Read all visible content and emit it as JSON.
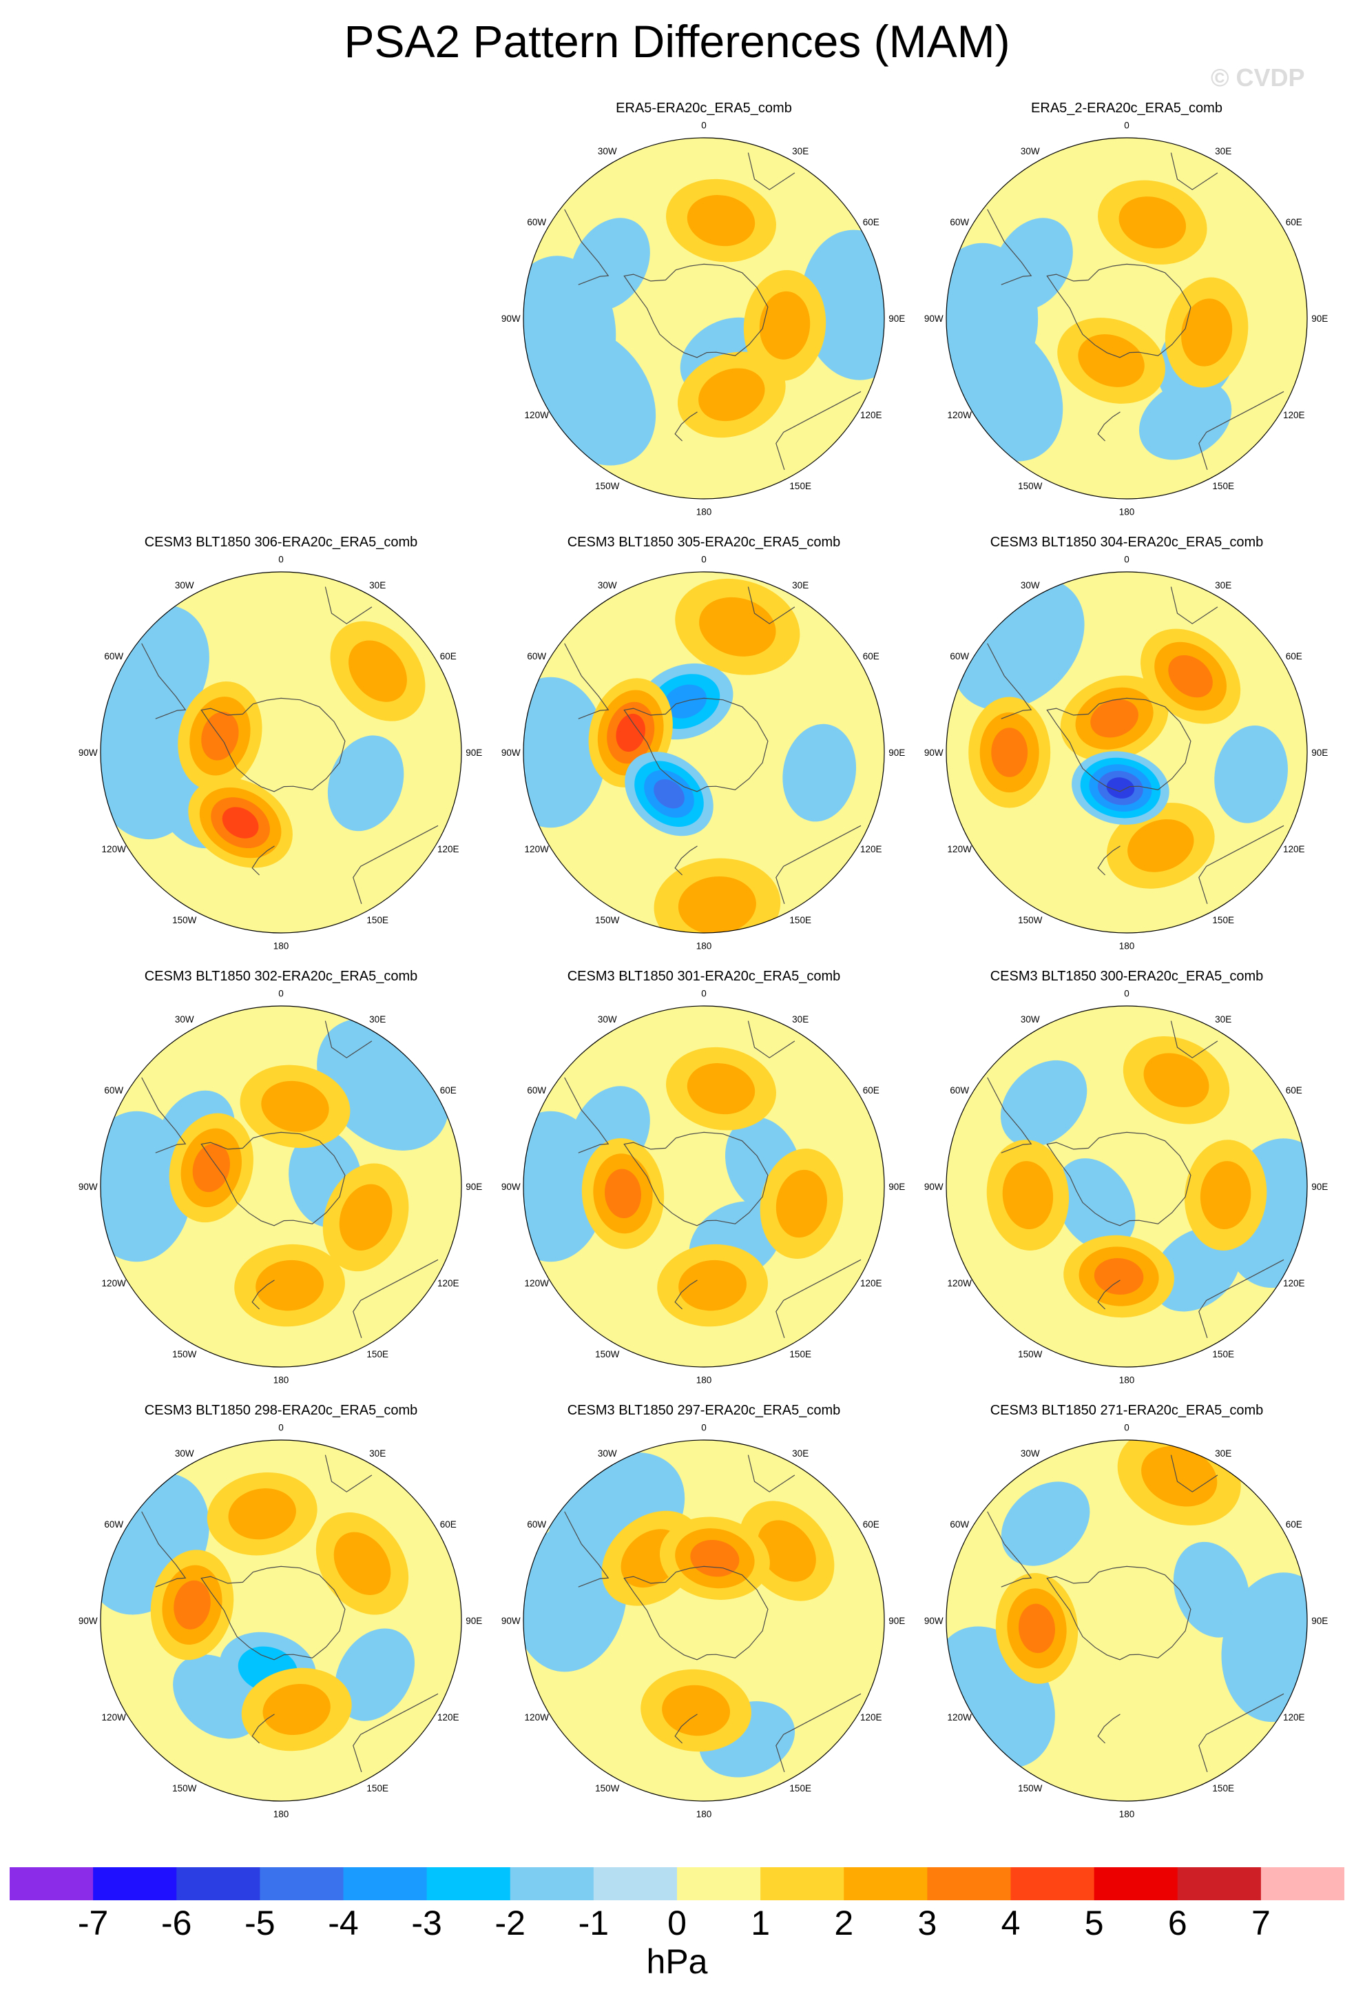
{
  "title": "PSA2 Pattern Differences (MAM)",
  "watermark": "© CVDP",
  "units": "hPa",
  "colors": {
    "neg7": "#8b2de8",
    "neg6": "#1f10ff",
    "neg5": "#2a3ee3",
    "neg4": "#3a72ee",
    "neg3": "#1a9bff",
    "neg2": "#00c3ff",
    "neg1": "#7dcdf2",
    "zero": "#b5def2",
    "pos0": "#fcf894",
    "pos1": "#ffd52e",
    "pos2": "#ffaa00",
    "pos3": "#ff7d0a",
    "pos4": "#ff4514",
    "pos5": "#ec0000",
    "pos6": "#ce1e26",
    "pos7": "#ffb5b5",
    "coast": "#4a4a4a"
  },
  "chart_data": {
    "type": "heatmap",
    "projection": "south polar stereographic",
    "units": "hPa",
    "longitude_labels": [
      "0",
      "30E",
      "60E",
      "90E",
      "120E",
      "150E",
      "180",
      "150W",
      "120W",
      "90W",
      "60W",
      "30W"
    ],
    "colorbar": {
      "ticks": [
        "-7",
        "-6",
        "-5",
        "-4",
        "-3",
        "-2",
        "-1",
        "0",
        "1",
        "2",
        "3",
        "4",
        "5",
        "6",
        "7"
      ],
      "levels": [
        -7,
        -6,
        -5,
        -4,
        -3,
        -2,
        -1,
        0,
        1,
        2,
        3,
        4,
        5,
        6,
        7
      ]
    },
    "panels": [
      {
        "title": "ERA5-ERA20c_ERA5_comb",
        "anomalies": [
          {
            "lon": 10,
            "r": 0.55,
            "value": 2
          },
          {
            "lon": 95,
            "r": 0.45,
            "value": 2
          },
          {
            "lon": 160,
            "r": 0.45,
            "value": 2
          },
          {
            "lon": 85,
            "r": 0.85,
            "value": -1
          },
          {
            "lon": -95,
            "r": 0.8,
            "value": -1
          },
          {
            "lon": -60,
            "r": 0.6,
            "value": -1
          },
          {
            "lon": -125,
            "r": 0.75,
            "value": -1
          },
          {
            "lon": 150,
            "r": 0.25,
            "value": -1
          }
        ]
      },
      {
        "title": "ERA5_2-ERA20c_ERA5_comb",
        "anomalies": [
          {
            "lon": 15,
            "r": 0.55,
            "value": 2
          },
          {
            "lon": 100,
            "r": 0.45,
            "value": 2
          },
          {
            "lon": -160,
            "r": 0.25,
            "value": 2
          },
          {
            "lon": -90,
            "r": 0.8,
            "value": -1
          },
          {
            "lon": -60,
            "r": 0.6,
            "value": -1
          },
          {
            "lon": -120,
            "r": 0.8,
            "value": -1
          },
          {
            "lon": 120,
            "r": 0.45,
            "value": -1
          },
          {
            "lon": 150,
            "r": 0.65,
            "value": -1
          }
        ]
      },
      {
        "title": "CESM3 BLT1850 306-ERA20c_ERA5_comb",
        "anomalies": [
          {
            "lon": 50,
            "r": 0.7,
            "value": 2
          },
          {
            "lon": -75,
            "r": 0.35,
            "value": 3
          },
          {
            "lon": -150,
            "r": 0.45,
            "value": 4
          },
          {
            "lon": -60,
            "r": 0.85,
            "value": -1
          },
          {
            "lon": -120,
            "r": 0.55,
            "value": -1
          },
          {
            "lon": 110,
            "r": 0.5,
            "value": -1
          },
          {
            "lon": -95,
            "r": 0.75,
            "value": -1
          }
        ]
      },
      {
        "title": "CESM3 BLT1850 305-ERA20c_ERA5_comb",
        "anomalies": [
          {
            "lon": 15,
            "r": 0.72,
            "value": 2
          },
          {
            "lon": -75,
            "r": 0.42,
            "value": 4
          },
          {
            "lon": -140,
            "r": 0.3,
            "value": -4
          },
          {
            "lon": -20,
            "r": 0.3,
            "value": -3
          },
          {
            "lon": 175,
            "r": 0.85,
            "value": 2
          },
          {
            "lon": -90,
            "r": 0.85,
            "value": -1
          },
          {
            "lon": 100,
            "r": 0.65,
            "value": -1
          }
        ]
      },
      {
        "title": "CESM3 BLT1850 304-ERA20c_ERA5_comb",
        "anomalies": [
          {
            "lon": 40,
            "r": 0.55,
            "value": 3
          },
          {
            "lon": -90,
            "r": 0.65,
            "value": 3
          },
          {
            "lon": -170,
            "r": 0.2,
            "value": -5
          },
          {
            "lon": 160,
            "r": 0.55,
            "value": 2
          },
          {
            "lon": 100,
            "r": 0.7,
            "value": -1
          },
          {
            "lon": -45,
            "r": 0.85,
            "value": -1
          },
          {
            "lon": -20,
            "r": 0.2,
            "value": 3
          }
        ]
      },
      {
        "title": "CESM3 BLT1850 302-ERA20c_ERA5_comb",
        "anomalies": [
          {
            "lon": 10,
            "r": 0.45,
            "value": 2
          },
          {
            "lon": -75,
            "r": 0.4,
            "value": 3
          },
          {
            "lon": 110,
            "r": 0.5,
            "value": 2
          },
          {
            "lon": 175,
            "r": 0.55,
            "value": 2
          },
          {
            "lon": -90,
            "r": 0.8,
            "value": -1
          },
          {
            "lon": -60,
            "r": 0.55,
            "value": -1
          },
          {
            "lon": 80,
            "r": 0.25,
            "value": -1
          },
          {
            "lon": 45,
            "r": 0.8,
            "value": -1
          }
        ]
      },
      {
        "title": "CESM3 BLT1850 301-ERA20c_ERA5_comb",
        "anomalies": [
          {
            "lon": 10,
            "r": 0.55,
            "value": 2
          },
          {
            "lon": -95,
            "r": 0.45,
            "value": 3
          },
          {
            "lon": 175,
            "r": 0.55,
            "value": 2
          },
          {
            "lon": -60,
            "r": 0.6,
            "value": -1
          },
          {
            "lon": 70,
            "r": 0.35,
            "value": -1
          },
          {
            "lon": 150,
            "r": 0.35,
            "value": -1
          },
          {
            "lon": -90,
            "r": 0.85,
            "value": -1
          },
          {
            "lon": 100,
            "r": 0.55,
            "value": 2
          }
        ]
      },
      {
        "title": "CESM3 BLT1850 300-ERA20c_ERA5_comb",
        "anomalies": [
          {
            "lon": 25,
            "r": 0.65,
            "value": 2
          },
          {
            "lon": -95,
            "r": 0.55,
            "value": 2
          },
          {
            "lon": 95,
            "r": 0.55,
            "value": 2
          },
          {
            "lon": -175,
            "r": 0.5,
            "value": 3
          },
          {
            "lon": -45,
            "r": 0.65,
            "value": -1
          },
          {
            "lon": 100,
            "r": 0.85,
            "value": -1
          },
          {
            "lon": -120,
            "r": 0.2,
            "value": -1
          },
          {
            "lon": 140,
            "r": 0.6,
            "value": -1
          }
        ]
      },
      {
        "title": "CESM3 BLT1850 298-ERA20c_ERA5_comb",
        "anomalies": [
          {
            "lon": -10,
            "r": 0.6,
            "value": 2
          },
          {
            "lon": 55,
            "r": 0.55,
            "value": 2
          },
          {
            "lon": -80,
            "r": 0.5,
            "value": 3
          },
          {
            "lon": -165,
            "r": 0.28,
            "value": -2
          },
          {
            "lon": 170,
            "r": 0.5,
            "value": 2
          },
          {
            "lon": -60,
            "r": 0.85,
            "value": -1
          },
          {
            "lon": 120,
            "r": 0.6,
            "value": -1
          },
          {
            "lon": -140,
            "r": 0.55,
            "value": -1
          }
        ]
      },
      {
        "title": "CESM3 BLT1850 297-ERA20c_ERA5_comb",
        "anomalies": [
          {
            "lon": 10,
            "r": 0.35,
            "value": 3
          },
          {
            "lon": -40,
            "r": 0.45,
            "value": 2
          },
          {
            "lon": 50,
            "r": 0.6,
            "value": 2
          },
          {
            "lon": -80,
            "r": 0.75,
            "value": -1
          },
          {
            "lon": -40,
            "r": 0.75,
            "value": -1
          },
          {
            "lon": 160,
            "r": 0.7,
            "value": -1
          },
          {
            "lon": -175,
            "r": 0.5,
            "value": 2
          }
        ]
      },
      {
        "title": "CESM3 BLT1850 271-ERA20c_ERA5_comb",
        "anomalies": [
          {
            "lon": -95,
            "r": 0.5,
            "value": 3
          },
          {
            "lon": 70,
            "r": 0.5,
            "value": -1
          },
          {
            "lon": -40,
            "r": 0.7,
            "value": -1
          },
          {
            "lon": -120,
            "r": 0.85,
            "value": -1
          },
          {
            "lon": 100,
            "r": 0.85,
            "value": -1
          },
          {
            "lon": 20,
            "r": 0.85,
            "value": 2
          }
        ]
      }
    ]
  }
}
